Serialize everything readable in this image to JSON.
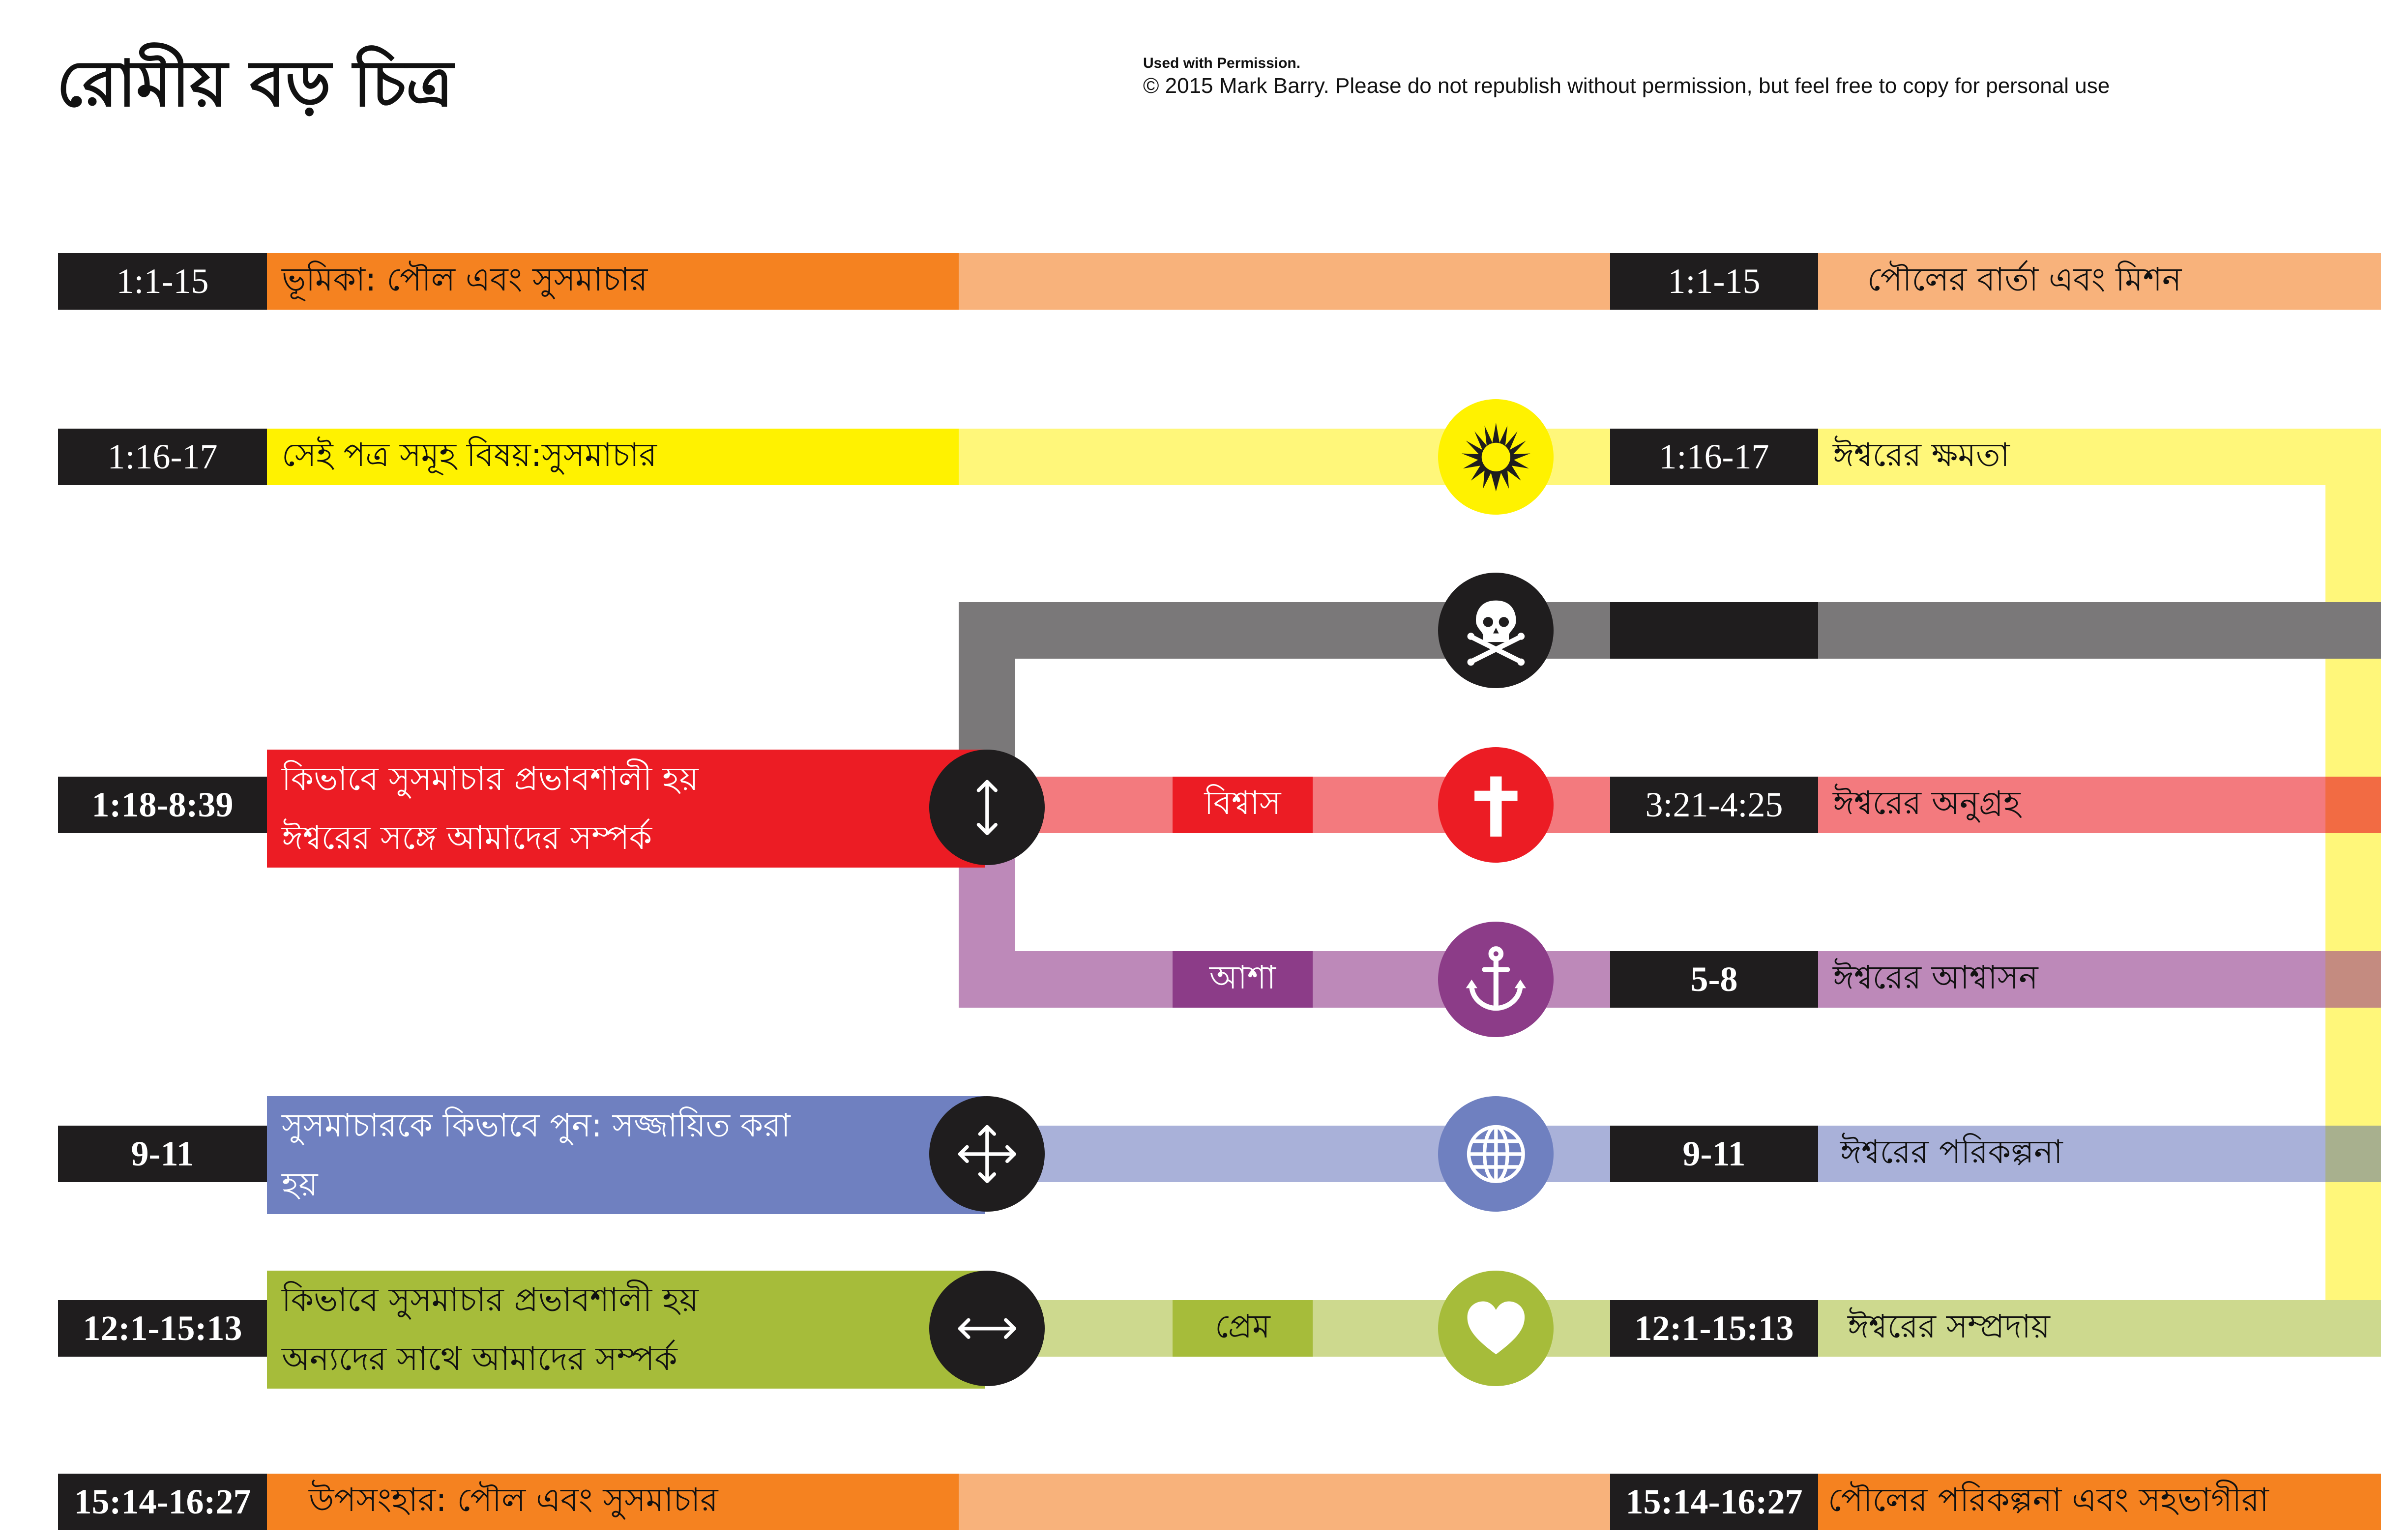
{
  "header": {
    "title": "রোমীয়  বড় চিত্র",
    "permission_line1": "Used with Permission.",
    "permission_line2": "© 2015 Mark Barry. Please do not republish without permission, but feel free to copy for personal use"
  },
  "colors": {
    "black": "#1f1d1e",
    "orange": "#f58220",
    "orange_light": "#f8b27b",
    "yellow": "#fff200",
    "yellow_light": "#fff77a",
    "gray": "#7a7879",
    "red": "#ec1c24",
    "red_light": "#f37a7e",
    "purple": "#8c3c88",
    "purple_light": "#bd89b9",
    "blue": "#6f80c0",
    "blue_light": "#a9b1d9",
    "green": "#a6bc3a",
    "green_light": "#cdd98e"
  },
  "rows": {
    "intro": {
      "ref_left": "1:1-15",
      "label_left": "ভূমিকা: পৌল এবং সুসমাচার",
      "ref_right": "1:1-15",
      "label_right": "পৌলের বার্তা এবং মিশন"
    },
    "theme": {
      "ref_left": "1:16-17",
      "label_left": "সেই পত্র সমূহ বিষয়:সুসমাচার",
      "ref_right": "1:16-17",
      "label_right": "ঈশ্বরের  ক্ষমতা",
      "icon": "sun-burst-icon"
    },
    "death": {
      "icon": "skull-crossbones-icon"
    },
    "faith": {
      "ref_left": "1:18-8:39",
      "label_left_1": "কিভাবে সুসমাচার প্রভাবশালী হয়",
      "label_left_2": "ঈশ্বরের সঙ্গে আমাদের সম্পর্ক",
      "tag": "বিশ্বাস",
      "ref_right": "3:21-4:25",
      "label_right": "ঈশ্বরের অনুগ্রহ",
      "hub_icon": "vertical-arrows-icon",
      "icon": "cross-icon"
    },
    "hope": {
      "tag": "আশা",
      "ref_right": "5-8",
      "label_right": "ঈশ্বরের আশ্বাসন",
      "icon": "anchor-icon"
    },
    "plan": {
      "ref_left": "9-11",
      "label_left_1": "সুসমাচারকে কিভাবে পুন: সজ্জায়িত করা",
      "label_left_2": "হয়",
      "ref_right": "9-11",
      "label_right": "ঈশ্বরের পরিকল্পনা",
      "hub_icon": "four-way-arrows-icon",
      "icon": "globe-icon"
    },
    "love": {
      "ref_left": "12:1-15:13",
      "label_left_1": "কিভাবে সুসমাচার প্রভাবশালী হয়",
      "label_left_2": "অন্যদের সাথে আমাদের সম্পর্ক",
      "tag": "প্রেম",
      "ref_right": "12:1-15:13",
      "label_right": "ঈশ্বরের সম্প্রদায়",
      "hub_icon": "horizontal-arrows-icon",
      "icon": "heart-icon"
    },
    "conclusion": {
      "ref_left": "15:14-16:27",
      "label_left": "উপসংহার: পৌল এবং সুসমাচার",
      "ref_right": "15:14-16:27",
      "label_right": "পৌলের পরিকল্পনা এবং সহভাগীরা"
    }
  }
}
